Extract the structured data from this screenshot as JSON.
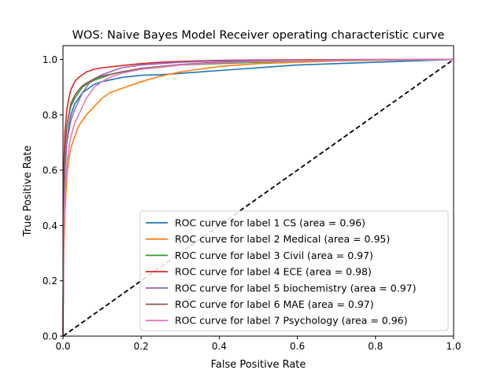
{
  "chart_data": {
    "type": "line",
    "title": "WOS: Naive Bayes Model Receiver operating characteristic curve",
    "xlabel": "False Positive Rate",
    "ylabel": "True Positive Rate",
    "xlim": [
      0.0,
      1.0
    ],
    "ylim": [
      0.0,
      1.05
    ],
    "xticks": [
      0.0,
      0.2,
      0.4,
      0.6,
      0.8,
      1.0
    ],
    "yticks": [
      0.0,
      0.2,
      0.4,
      0.6,
      0.8,
      1.0
    ],
    "xtick_labels": [
      "0.0",
      "0.2",
      "0.4",
      "0.6",
      "0.8",
      "1.0"
    ],
    "ytick_labels": [
      "0.0",
      "0.2",
      "0.4",
      "0.6",
      "0.8",
      "1.0"
    ],
    "grid": false,
    "legend_position": "lower-right",
    "series": [
      {
        "name": "ROC curve for label 1 CS (area = 0.96)",
        "color": "#1f77b4",
        "x": [
          0,
          0.002,
          0.005,
          0.01,
          0.015,
          0.02,
          0.03,
          0.04,
          0.05,
          0.06,
          0.08,
          0.1,
          0.15,
          0.2,
          0.25,
          0.3,
          0.35,
          0.4,
          0.45,
          0.5,
          0.6,
          0.7,
          0.8,
          0.9,
          1.0
        ],
        "y": [
          0,
          0.45,
          0.6,
          0.7,
          0.76,
          0.8,
          0.84,
          0.86,
          0.88,
          0.89,
          0.91,
          0.92,
          0.935,
          0.943,
          0.945,
          0.95,
          0.955,
          0.96,
          0.965,
          0.97,
          0.98,
          0.985,
          0.99,
          0.995,
          1.0
        ]
      },
      {
        "name": "ROC curve for label 2 Medical (area = 0.95)",
        "color": "#ff7f0e",
        "x": [
          0,
          0.002,
          0.005,
          0.01,
          0.015,
          0.02,
          0.03,
          0.04,
          0.05,
          0.06,
          0.08,
          0.1,
          0.12,
          0.15,
          0.2,
          0.25,
          0.3,
          0.35,
          0.4,
          0.5,
          0.6,
          0.7,
          0.8,
          0.9,
          1.0
        ],
        "y": [
          0,
          0.3,
          0.45,
          0.58,
          0.64,
          0.68,
          0.72,
          0.76,
          0.78,
          0.8,
          0.83,
          0.86,
          0.88,
          0.895,
          0.92,
          0.94,
          0.955,
          0.965,
          0.975,
          0.985,
          0.99,
          0.995,
          0.997,
          0.999,
          1.0
        ]
      },
      {
        "name": "ROC curve for label 3 Civil (area = 0.97)",
        "color": "#2ca02c",
        "x": [
          0,
          0.002,
          0.005,
          0.01,
          0.015,
          0.02,
          0.03,
          0.04,
          0.05,
          0.06,
          0.08,
          0.1,
          0.12,
          0.15,
          0.2,
          0.25,
          0.3,
          0.4,
          0.5,
          0.6,
          0.8,
          1.0
        ],
        "y": [
          0,
          0.55,
          0.68,
          0.76,
          0.8,
          0.83,
          0.86,
          0.88,
          0.9,
          0.91,
          0.925,
          0.935,
          0.945,
          0.955,
          0.965,
          0.972,
          0.98,
          0.985,
          0.99,
          0.995,
          0.998,
          1.0
        ]
      },
      {
        "name": "ROC curve for label 4 ECE (area = 0.98)",
        "color": "#d62728",
        "x": [
          0,
          0.002,
          0.005,
          0.01,
          0.015,
          0.02,
          0.03,
          0.04,
          0.05,
          0.06,
          0.08,
          0.1,
          0.15,
          0.2,
          0.25,
          0.3,
          0.35,
          0.4,
          0.5,
          0.6,
          0.8,
          1.0
        ],
        "y": [
          0,
          0.6,
          0.74,
          0.82,
          0.86,
          0.89,
          0.92,
          0.935,
          0.945,
          0.955,
          0.965,
          0.97,
          0.978,
          0.985,
          0.99,
          0.993,
          0.995,
          0.997,
          0.998,
          0.999,
          1.0,
          1.0
        ]
      },
      {
        "name": "ROC curve for label 5 biochemistry (area = 0.97)",
        "color": "#9467bd",
        "x": [
          0,
          0.002,
          0.005,
          0.01,
          0.015,
          0.02,
          0.03,
          0.04,
          0.05,
          0.06,
          0.07,
          0.08,
          0.1,
          0.12,
          0.15,
          0.2,
          0.3,
          0.4,
          0.6,
          0.8,
          1.0
        ],
        "y": [
          0,
          0.5,
          0.62,
          0.7,
          0.74,
          0.78,
          0.82,
          0.85,
          0.88,
          0.9,
          0.92,
          0.93,
          0.945,
          0.955,
          0.97,
          0.98,
          0.99,
          0.995,
          0.998,
          0.999,
          1.0
        ]
      },
      {
        "name": "ROC curve for label 6 MAE (area = 0.97)",
        "color": "#8c564b",
        "x": [
          0,
          0.002,
          0.005,
          0.01,
          0.015,
          0.02,
          0.03,
          0.04,
          0.05,
          0.06,
          0.08,
          0.1,
          0.15,
          0.2,
          0.25,
          0.3,
          0.4,
          0.5,
          0.6,
          0.8,
          1.0
        ],
        "y": [
          0,
          0.55,
          0.68,
          0.76,
          0.8,
          0.84,
          0.87,
          0.89,
          0.905,
          0.915,
          0.93,
          0.94,
          0.955,
          0.968,
          0.975,
          0.982,
          0.99,
          0.994,
          0.997,
          0.999,
          1.0
        ]
      },
      {
        "name": "ROC curve for label 7 Psychology  (area = 0.96)",
        "color": "#e377c2",
        "x": [
          0,
          0.002,
          0.005,
          0.01,
          0.015,
          0.02,
          0.03,
          0.04,
          0.05,
          0.06,
          0.07,
          0.08,
          0.1,
          0.12,
          0.15,
          0.2,
          0.3,
          0.4,
          0.5,
          0.6,
          0.8,
          1.0
        ],
        "y": [
          0,
          0.4,
          0.52,
          0.62,
          0.68,
          0.72,
          0.77,
          0.8,
          0.83,
          0.86,
          0.88,
          0.9,
          0.92,
          0.935,
          0.95,
          0.965,
          0.98,
          0.988,
          0.993,
          0.996,
          0.999,
          1.0
        ]
      }
    ],
    "reference_line": {
      "x": [
        0,
        1
      ],
      "y": [
        0,
        1
      ],
      "color": "#000000",
      "style": "dashed"
    }
  }
}
